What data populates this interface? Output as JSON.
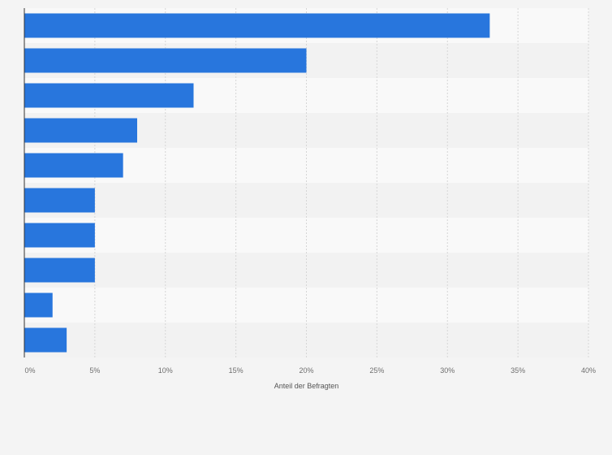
{
  "chart_data": {
    "type": "bar",
    "orientation": "horizontal",
    "categories": [
      "",
      "",
      "",
      "",
      "",
      "",
      "",
      "",
      "",
      ""
    ],
    "values": [
      33,
      20,
      12,
      8,
      7,
      5,
      5,
      5,
      2,
      3
    ],
    "xlabel": "Anteil der Befragten",
    "ylabel": "",
    "xlim": [
      0,
      40
    ],
    "x_ticks": [
      "0%",
      "5%",
      "10%",
      "15%",
      "20%",
      "25%",
      "30%",
      "35%",
      "40%"
    ],
    "grid": true,
    "legend": "none",
    "colors": {
      "bar": "#2876dd",
      "background": "#f4f4f4",
      "band_light": "#f9f9f9",
      "band_dark": "#f2f2f2",
      "grid": "#d6d6d6",
      "axis": "#333333"
    }
  }
}
